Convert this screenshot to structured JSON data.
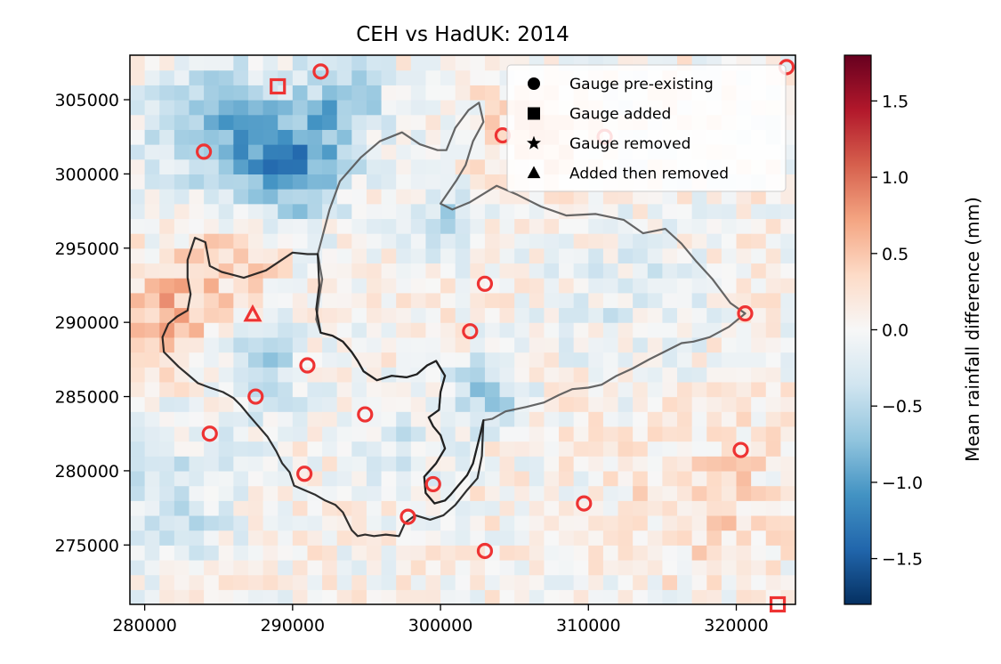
{
  "chart_data": {
    "type": "heatmap",
    "title": "CEH vs HadUK: 2014",
    "xlabel": "",
    "ylabel": "",
    "xlim": [
      279000,
      324000
    ],
    "ylim": [
      271000,
      308000
    ],
    "x_ticks": [
      280000,
      290000,
      300000,
      310000,
      320000
    ],
    "y_ticks": [
      275000,
      280000,
      285000,
      290000,
      295000,
      300000,
      305000
    ],
    "x_tick_labels": [
      "280000",
      "290000",
      "300000",
      "310000",
      "320000"
    ],
    "y_tick_labels": [
      "275000",
      "280000",
      "285000",
      "290000",
      "295000",
      "300000",
      "305000"
    ],
    "grid_cell_size": 1000,
    "colormap": "RdBu_r",
    "colormap_stops": [
      "#053061",
      "#2166ac",
      "#4393c3",
      "#92c5de",
      "#d1e5f0",
      "#f7f7f7",
      "#fddbc7",
      "#f4a582",
      "#d6604d",
      "#b2182b",
      "#67001f"
    ],
    "colorbar": {
      "label": "Mean rainfall difference (mm)",
      "range": [
        -1.8,
        1.8
      ],
      "ticks": [
        -1.5,
        -1.0,
        -0.5,
        0.0,
        0.5,
        1.0,
        1.5
      ],
      "tick_labels": [
        "−1.5",
        "−1.0",
        "−0.5",
        "0.0",
        "0.5",
        "1.0",
        "1.5"
      ]
    },
    "marker_color": "#ee3333",
    "legend": {
      "placement": "top-right",
      "entries": [
        {
          "label": "Gauge pre-existing",
          "marker": "circle"
        },
        {
          "label": "Gauge added",
          "marker": "square"
        },
        {
          "label": "Gauge removed",
          "marker": "star"
        },
        {
          "label": "Added then removed",
          "marker": "triangle"
        }
      ]
    },
    "gauges": [
      {
        "x": 291900,
        "y": 306900,
        "status": "pre-existing"
      },
      {
        "x": 323400,
        "y": 307200,
        "status": "pre-existing"
      },
      {
        "x": 289000,
        "y": 305900,
        "status": "added"
      },
      {
        "x": 304200,
        "y": 302600,
        "status": "pre-existing"
      },
      {
        "x": 311100,
        "y": 302500,
        "status": "pre-existing"
      },
      {
        "x": 284000,
        "y": 301500,
        "status": "pre-existing"
      },
      {
        "x": 303000,
        "y": 292600,
        "status": "pre-existing"
      },
      {
        "x": 320600,
        "y": 290600,
        "status": "pre-existing"
      },
      {
        "x": 302000,
        "y": 289400,
        "status": "pre-existing"
      },
      {
        "x": 287300,
        "y": 290500,
        "status": "added-then-removed"
      },
      {
        "x": 291000,
        "y": 287100,
        "status": "pre-existing"
      },
      {
        "x": 287500,
        "y": 285000,
        "status": "pre-existing"
      },
      {
        "x": 294900,
        "y": 283800,
        "status": "pre-existing"
      },
      {
        "x": 284400,
        "y": 282500,
        "status": "pre-existing"
      },
      {
        "x": 320300,
        "y": 281400,
        "status": "pre-existing"
      },
      {
        "x": 290800,
        "y": 279800,
        "status": "pre-existing"
      },
      {
        "x": 299500,
        "y": 279100,
        "status": "pre-existing"
      },
      {
        "x": 309700,
        "y": 277800,
        "status": "pre-existing"
      },
      {
        "x": 297800,
        "y": 276900,
        "status": "pre-existing"
      },
      {
        "x": 303000,
        "y": 274600,
        "status": "pre-existing"
      },
      {
        "x": 322800,
        "y": 271000,
        "status": "added"
      }
    ],
    "catchments": [
      {
        "color": "#555555",
        "points": [
          [
            291700,
            294600
          ],
          [
            292500,
            297600
          ],
          [
            293200,
            299500
          ],
          [
            294600,
            301100
          ],
          [
            295900,
            302200
          ],
          [
            297400,
            302800
          ],
          [
            298600,
            302000
          ],
          [
            299800,
            301600
          ],
          [
            300400,
            301600
          ],
          [
            301000,
            303100
          ],
          [
            301900,
            304300
          ],
          [
            302600,
            304800
          ],
          [
            302900,
            303500
          ],
          [
            302200,
            302200
          ],
          [
            301700,
            300600
          ],
          [
            301100,
            299600
          ],
          [
            300000,
            298000
          ],
          [
            300800,
            297600
          ],
          [
            302000,
            298100
          ],
          [
            303800,
            299200
          ],
          [
            305200,
            298600
          ],
          [
            306800,
            297800
          ],
          [
            308500,
            297200
          ],
          [
            310500,
            297300
          ],
          [
            312400,
            296900
          ],
          [
            313700,
            296000
          ],
          [
            315200,
            296300
          ],
          [
            316300,
            295300
          ],
          [
            317300,
            294100
          ],
          [
            318400,
            292900
          ],
          [
            319600,
            291300
          ],
          [
            320600,
            290600
          ],
          [
            319500,
            289700
          ],
          [
            318200,
            289000
          ],
          [
            317100,
            288700
          ],
          [
            316300,
            288600
          ],
          [
            315100,
            288000
          ],
          [
            314100,
            287500
          ],
          [
            313000,
            286900
          ],
          [
            311900,
            286400
          ],
          [
            310900,
            285800
          ],
          [
            310000,
            285600
          ],
          [
            308900,
            285500
          ],
          [
            308000,
            285100
          ],
          [
            307000,
            284600
          ],
          [
            305800,
            284300
          ],
          [
            304400,
            284000
          ],
          [
            303500,
            283500
          ],
          [
            302900,
            283400
          ],
          [
            302700,
            282500
          ],
          [
            302500,
            281700
          ],
          [
            302200,
            280500
          ],
          [
            301800,
            279700
          ],
          [
            301200,
            279000
          ],
          [
            300700,
            278400
          ],
          [
            300300,
            278000
          ],
          [
            299600,
            277800
          ],
          [
            299000,
            278500
          ],
          [
            298900,
            279600
          ],
          [
            299700,
            280500
          ],
          [
            300300,
            281500
          ],
          [
            300000,
            282400
          ],
          [
            299500,
            283000
          ],
          [
            299200,
            283600
          ],
          [
            299900,
            284100
          ],
          [
            300000,
            285300
          ],
          [
            300300,
            286400
          ],
          [
            299700,
            287400
          ],
          [
            299100,
            287100
          ],
          [
            298400,
            286500
          ],
          [
            297700,
            286300
          ],
          [
            296700,
            286400
          ],
          [
            295700,
            286100
          ],
          [
            294800,
            286700
          ],
          [
            294400,
            287400
          ],
          [
            294000,
            288000
          ],
          [
            293400,
            288700
          ],
          [
            292700,
            289100
          ],
          [
            291900,
            289300
          ],
          [
            291600,
            290200
          ],
          [
            291800,
            291700
          ],
          [
            292000,
            292900
          ],
          [
            291700,
            294600
          ]
        ]
      },
      {
        "color": "#1a1a1a",
        "points": [
          [
            283400,
            295700
          ],
          [
            284100,
            295400
          ],
          [
            284400,
            293800
          ],
          [
            285200,
            293400
          ],
          [
            286700,
            293000
          ],
          [
            288200,
            293500
          ],
          [
            289100,
            294100
          ],
          [
            290000,
            294700
          ],
          [
            291000,
            294600
          ],
          [
            291700,
            294600
          ],
          [
            291800,
            292500
          ],
          [
            291600,
            290900
          ],
          [
            291900,
            289300
          ],
          [
            292700,
            289100
          ],
          [
            293400,
            288700
          ],
          [
            294000,
            288000
          ],
          [
            294400,
            287400
          ],
          [
            294800,
            286700
          ],
          [
            295700,
            286100
          ],
          [
            296700,
            286400
          ],
          [
            297700,
            286300
          ],
          [
            298400,
            286500
          ],
          [
            299100,
            287100
          ],
          [
            299700,
            287400
          ],
          [
            300300,
            286400
          ],
          [
            300000,
            285300
          ],
          [
            299900,
            284100
          ],
          [
            299200,
            283600
          ],
          [
            299500,
            283000
          ],
          [
            300000,
            282400
          ],
          [
            300300,
            281500
          ],
          [
            299700,
            280500
          ],
          [
            298900,
            279600
          ],
          [
            299000,
            278500
          ],
          [
            299600,
            277800
          ],
          [
            300300,
            278000
          ],
          [
            300700,
            278400
          ],
          [
            301200,
            279000
          ],
          [
            301800,
            279700
          ],
          [
            302200,
            280500
          ],
          [
            302500,
            281700
          ],
          [
            302700,
            282500
          ],
          [
            302900,
            283400
          ],
          [
            302800,
            281000
          ],
          [
            302500,
            279500
          ],
          [
            301800,
            278700
          ],
          [
            301000,
            277700
          ],
          [
            300200,
            277000
          ],
          [
            299300,
            276700
          ],
          [
            298300,
            277000
          ],
          [
            297600,
            276500
          ],
          [
            297200,
            275600
          ],
          [
            296300,
            275700
          ],
          [
            295500,
            275600
          ],
          [
            294900,
            275700
          ],
          [
            294400,
            275600
          ],
          [
            294000,
            276000
          ],
          [
            293700,
            276600
          ],
          [
            293400,
            277200
          ],
          [
            292900,
            277700
          ],
          [
            292200,
            278000
          ],
          [
            291500,
            278400
          ],
          [
            290800,
            278700
          ],
          [
            290100,
            279000
          ],
          [
            289800,
            279900
          ],
          [
            289300,
            280500
          ],
          [
            288900,
            281300
          ],
          [
            288300,
            282300
          ],
          [
            287600,
            283100
          ],
          [
            287000,
            283800
          ],
          [
            286500,
            284400
          ],
          [
            286000,
            284900
          ],
          [
            285300,
            285300
          ],
          [
            284400,
            285600
          ],
          [
            283600,
            285900
          ],
          [
            282900,
            286500
          ],
          [
            282300,
            287000
          ],
          [
            281700,
            287600
          ],
          [
            281300,
            288000
          ],
          [
            281200,
            289000
          ],
          [
            281600,
            289900
          ],
          [
            282200,
            290400
          ],
          [
            282900,
            290800
          ],
          [
            283100,
            291900
          ],
          [
            282900,
            293000
          ],
          [
            282900,
            294200
          ],
          [
            283400,
            295700
          ]
        ]
      }
    ]
  }
}
